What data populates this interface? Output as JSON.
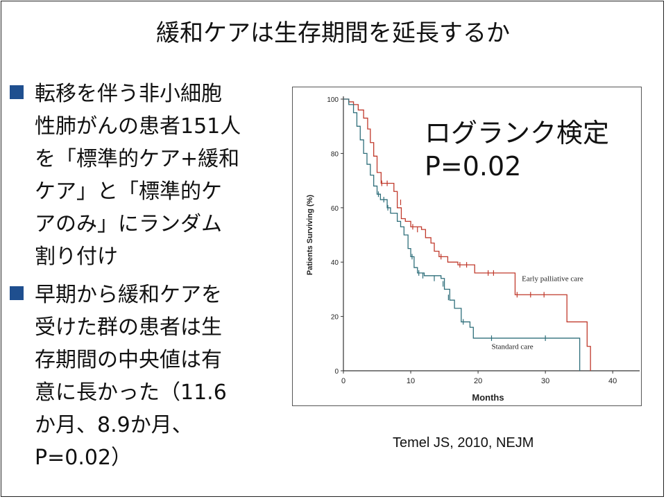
{
  "title": "緩和ケアは生存期間を延長するか",
  "bullets": [
    {
      "text": "転移を伴う非小細胞\n性肺がんの患者151人\nを「標準的ケア+緩和\nケア」と「標準的ケ\nアのみ」にランダム\n割り付け"
    },
    {
      "text": "早期から緩和ケアを\n受けた群の患者は生\n存期間の中央値は有\n意に長かった（11.6\nか月、8.9か月、\nP=0.02）"
    }
  ],
  "annotation": {
    "line1": "ログランク検定",
    "line2": "P=0.02"
  },
  "citation": "Temel JS, 2010, NEJM",
  "colors": {
    "bullet": "#1f4f8f",
    "early": "#c0392b",
    "standard": "#2e6e7a"
  },
  "chart_data": {
    "type": "line",
    "xlabel": "Months",
    "ylabel": "Patients Surviving (%)",
    "xlim": [
      0,
      44
    ],
    "ylim": [
      0,
      100
    ],
    "xticks": [
      0,
      10,
      20,
      30,
      40
    ],
    "yticks": [
      0,
      20,
      40,
      60,
      80,
      100
    ],
    "grid": false,
    "series": [
      {
        "name": "Early palliative care",
        "color": "#c0392b",
        "label_at": [
          26.5,
          33
        ],
        "points": [
          [
            0,
            100
          ],
          [
            0.8,
            99
          ],
          [
            1.5,
            98
          ],
          [
            2.2,
            96
          ],
          [
            3,
            93
          ],
          [
            3.6,
            89
          ],
          [
            4,
            84
          ],
          [
            4.5,
            79
          ],
          [
            5,
            73
          ],
          [
            5.6,
            69
          ],
          [
            7,
            69
          ],
          [
            7.5,
            66
          ],
          [
            8,
            60
          ],
          [
            8.6,
            56
          ],
          [
            9.2,
            55
          ],
          [
            10,
            53
          ],
          [
            11.6,
            52
          ],
          [
            12.2,
            49
          ],
          [
            13,
            47
          ],
          [
            13.5,
            44
          ],
          [
            14.2,
            42
          ],
          [
            15.5,
            40
          ],
          [
            17,
            39
          ],
          [
            19,
            39
          ],
          [
            19.5,
            36
          ],
          [
            25,
            36
          ],
          [
            25.5,
            28
          ],
          [
            33,
            28
          ],
          [
            33.2,
            18
          ],
          [
            36,
            18
          ],
          [
            36.2,
            9
          ],
          [
            36.6,
            9
          ],
          [
            36.7,
            0
          ]
        ],
        "censored": [
          [
            5.7,
            69
          ],
          [
            6.5,
            69
          ],
          [
            8.5,
            62
          ],
          [
            10.3,
            53
          ],
          [
            11,
            52
          ],
          [
            14.5,
            42
          ],
          [
            17.3,
            39
          ],
          [
            18.3,
            39
          ],
          [
            21.5,
            36
          ],
          [
            22.3,
            36
          ],
          [
            25.8,
            28
          ],
          [
            27.8,
            28
          ],
          [
            29.8,
            28
          ]
        ]
      },
      {
        "name": "Standard care",
        "color": "#2e6e7a",
        "label_at": [
          22,
          8
        ],
        "points": [
          [
            0,
            100
          ],
          [
            0.8,
            98
          ],
          [
            1.5,
            95
          ],
          [
            2,
            90
          ],
          [
            2.5,
            85
          ],
          [
            3,
            80
          ],
          [
            3.5,
            76
          ],
          [
            4,
            72
          ],
          [
            4.5,
            68
          ],
          [
            5,
            65
          ],
          [
            5.5,
            63
          ],
          [
            6.5,
            60
          ],
          [
            7,
            58
          ],
          [
            8,
            55
          ],
          [
            8.5,
            53
          ],
          [
            9,
            50
          ],
          [
            9.6,
            45
          ],
          [
            10,
            42
          ],
          [
            10.5,
            38
          ],
          [
            11,
            36
          ],
          [
            12,
            35
          ],
          [
            14.5,
            34
          ],
          [
            15,
            30
          ],
          [
            15.8,
            26
          ],
          [
            16.5,
            23
          ],
          [
            17.5,
            18
          ],
          [
            18.8,
            16
          ],
          [
            19.3,
            12
          ],
          [
            35,
            12
          ],
          [
            35.1,
            0
          ]
        ],
        "censored": [
          [
            5.2,
            65
          ],
          [
            6,
            63
          ],
          [
            6.6,
            60
          ],
          [
            10.2,
            42
          ],
          [
            11.2,
            36
          ],
          [
            11.8,
            35
          ],
          [
            13.5,
            34
          ],
          [
            14.8,
            32
          ],
          [
            15.6,
            27
          ],
          [
            17.8,
            18
          ],
          [
            22,
            12
          ],
          [
            30,
            12
          ]
        ]
      }
    ]
  }
}
